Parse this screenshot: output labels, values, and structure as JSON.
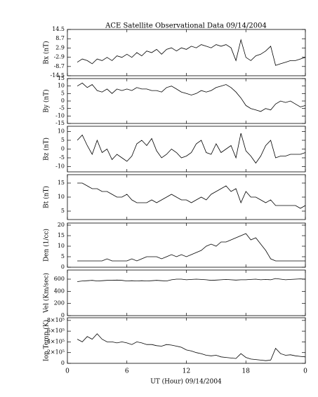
{
  "chart_data": {
    "type": "line",
    "title": "ACE Satellite Observational Data   09/14/2004",
    "xlabel": "UT (Hour)  09/14/2004",
    "xlim": [
      0,
      24
    ],
    "xticks": [
      0,
      6,
      12,
      18,
      {
        "value": 24,
        "label": "0"
      }
    ],
    "x": [
      1,
      1.5,
      2,
      2.5,
      3,
      3.5,
      4,
      4.5,
      5,
      5.5,
      6,
      6.5,
      7,
      7.5,
      8,
      8.5,
      9,
      9.5,
      10,
      10.5,
      11,
      11.5,
      12,
      12.5,
      13,
      13.5,
      14,
      14.5,
      15,
      15.5,
      16,
      16.5,
      17,
      17.5,
      18,
      18.5,
      19,
      19.5,
      20,
      20.5,
      21,
      21.5,
      22,
      22.5,
      23,
      23.5,
      24
    ],
    "series": [
      {
        "name": "Bx (nT)",
        "color": "#000000",
        "ylim": [
          -14.5,
          14.5
        ],
        "yticks": [
          14.5,
          8.7,
          2.9,
          -2.9,
          -8.7,
          -14.5
        ],
        "values": [
          -6,
          -4,
          -5,
          -7,
          -4,
          -5,
          -3,
          -5,
          -2,
          -3,
          -1,
          -3,
          0,
          -2,
          1,
          0,
          2,
          -1,
          2,
          3,
          1,
          3,
          2,
          4,
          3,
          5,
          4,
          3,
          5,
          4,
          5,
          3,
          -5,
          8,
          -3,
          -5,
          -2,
          -1,
          1,
          4,
          -8,
          -7,
          -6,
          -5,
          -5,
          -4,
          -3
        ]
      },
      {
        "name": "By (nT)",
        "color": "#000000",
        "ylim": [
          -15,
          15
        ],
        "yticks": [
          15,
          10,
          5,
          0,
          -5,
          -10,
          -15
        ],
        "values": [
          10,
          12,
          9,
          11,
          7,
          6,
          8,
          5,
          8,
          7,
          8,
          7,
          9,
          8,
          8,
          7,
          7,
          6,
          9,
          10,
          8,
          6,
          5,
          4,
          5,
          7,
          6,
          7,
          9,
          10,
          11,
          9,
          6,
          2,
          -3,
          -5,
          -6,
          -7,
          -5,
          -6,
          -2,
          0,
          -1,
          0,
          -2,
          -4,
          -3
        ]
      },
      {
        "name": "Bz (nT)",
        "color": "#000000",
        "ylim": [
          -13,
          13
        ],
        "yticks": [
          10,
          5,
          0,
          -5,
          -10
        ],
        "values": [
          5,
          8,
          2,
          -3,
          5,
          -2,
          0,
          -6,
          -3,
          -5,
          -7,
          -4,
          3,
          5,
          2,
          6,
          -1,
          -5,
          -3,
          0,
          -2,
          -5,
          -4,
          -2,
          3,
          5,
          -2,
          -3,
          3,
          -2,
          0,
          2,
          -5,
          9,
          -1,
          -4,
          -8,
          -4,
          2,
          5,
          -5,
          -4,
          -4,
          -3,
          -3,
          -3,
          -2
        ]
      },
      {
        "name": "Bt (nT)",
        "color": "#000000",
        "ylim": [
          2,
          18
        ],
        "yticks": [
          5,
          10,
          15
        ],
        "values": [
          15,
          15,
          14,
          13,
          13,
          12,
          12,
          11,
          10,
          10,
          11,
          9,
          8,
          8,
          8,
          9,
          8,
          9,
          10,
          11,
          10,
          9,
          9,
          8,
          9,
          10,
          9,
          11,
          12,
          13,
          14,
          12,
          13,
          8,
          12,
          10,
          10,
          9,
          8,
          9,
          7,
          7,
          7,
          7,
          7,
          6,
          7
        ]
      },
      {
        "name": "Den (1/cc)",
        "color": "#000000",
        "ylim": [
          0,
          21
        ],
        "yticks": [
          0,
          5,
          10,
          15,
          20
        ],
        "values": [
          3,
          3,
          3,
          3,
          3,
          3,
          4,
          3,
          3,
          3,
          3,
          4,
          3,
          4,
          5,
          5,
          5,
          4,
          5,
          6,
          5,
          6,
          5,
          6,
          7,
          8,
          10,
          11,
          10,
          12,
          12,
          13,
          14,
          15,
          16,
          13,
          14,
          11,
          8,
          4,
          3,
          3,
          3,
          3,
          3,
          3,
          3
        ]
      },
      {
        "name": "Vel (Km/sec)",
        "color": "#000000",
        "ylim": [
          0,
          750
        ],
        "yticks": [
          0,
          200,
          400,
          600
        ],
        "values": [
          560,
          570,
          575,
          580,
          570,
          575,
          580,
          580,
          585,
          580,
          570,
          575,
          570,
          575,
          570,
          575,
          580,
          575,
          570,
          590,
          600,
          600,
          590,
          595,
          600,
          595,
          590,
          580,
          585,
          590,
          595,
          590,
          585,
          590,
          590,
          595,
          600,
          590,
          595,
          590,
          610,
          600,
          590,
          595,
          600,
          605,
          600
        ]
      },
      {
        "name": "Ion Temp (K)",
        "color": "#000000",
        "ylim": [
          0,
          850000
        ],
        "yticks": [
          0,
          {
            "value": 200000,
            "label": "2×10⁵"
          },
          {
            "value": 400000,
            "label": "4×10⁵"
          },
          {
            "value": 600000,
            "label": "6×10⁵"
          },
          {
            "value": 800000,
            "label": "8×10⁵"
          }
        ],
        "values": [
          450000,
          400000,
          500000,
          450000,
          550000,
          450000,
          400000,
          400000,
          380000,
          400000,
          380000,
          350000,
          400000,
          380000,
          350000,
          350000,
          330000,
          320000,
          350000,
          340000,
          320000,
          300000,
          250000,
          230000,
          200000,
          180000,
          150000,
          140000,
          150000,
          120000,
          110000,
          100000,
          90000,
          180000,
          110000,
          80000,
          70000,
          60000,
          50000,
          60000,
          280000,
          180000,
          150000,
          160000,
          140000,
          130000,
          120000
        ]
      }
    ]
  }
}
